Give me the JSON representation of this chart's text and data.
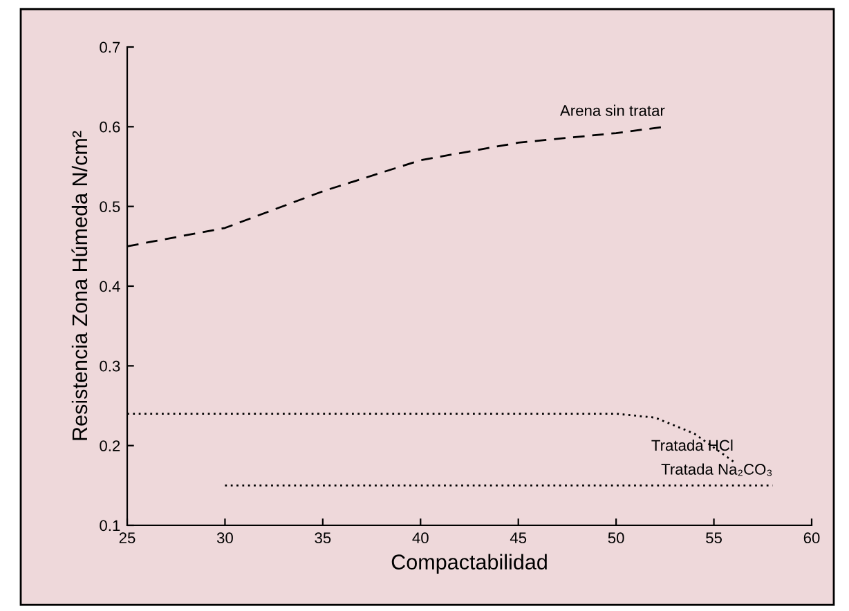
{
  "chart_data": {
    "type": "line",
    "xlabel": "Compactabilidad",
    "ylabel": "Resistencia Zona Húmeda N/cm²",
    "xlim": [
      25,
      60
    ],
    "xticks": [
      25,
      30,
      35,
      40,
      45,
      50,
      55,
      60
    ],
    "ylim": [
      0.1,
      0.7
    ],
    "yticks": [
      0.1,
      0.2,
      0.3,
      0.4,
      0.5,
      0.6,
      0.7
    ],
    "legend": false,
    "series": [
      {
        "name": "Arena sin tratar",
        "color": "#000000",
        "line_style": "dashed",
        "x": [
          25,
          30,
          35,
          40,
          45,
          50,
          52.5
        ],
        "values": [
          0.45,
          0.473,
          0.519,
          0.558,
          0.58,
          0.592,
          0.6
        ]
      },
      {
        "name": "Tratada HCl",
        "color": "#000000",
        "line_style": "dotted",
        "x": [
          25,
          50,
          52,
          54,
          56
        ],
        "values": [
          0.24,
          0.24,
          0.235,
          0.215,
          0.18
        ]
      },
      {
        "name": "Tratada Na₂CO₃",
        "color": "#000000",
        "line_style": "dotted",
        "x": [
          30,
          58
        ],
        "values": [
          0.15,
          0.15
        ]
      }
    ]
  }
}
